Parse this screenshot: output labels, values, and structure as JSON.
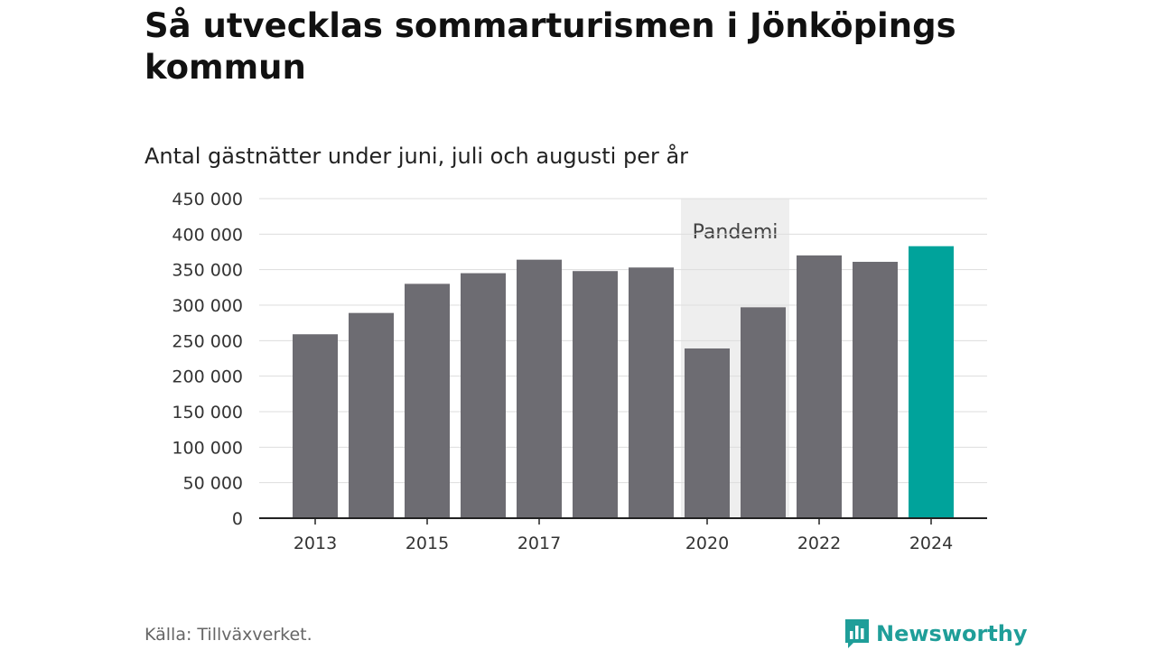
{
  "chart_data": {
    "type": "bar",
    "title": "Så utvecklas sommarturismen i Jönköpings kommun",
    "subtitle": "Antal gästnätter under juni, juli och augusti per år",
    "categories": [
      "2013",
      "2014",
      "2015",
      "2016",
      "2017",
      "2018",
      "2019",
      "2020",
      "2021",
      "2022",
      "2023",
      "2024"
    ],
    "x_tick_labels": [
      "2013",
      "",
      "2015",
      "",
      "2017",
      "",
      "",
      "2020",
      "",
      "2022",
      "",
      "2024"
    ],
    "values": [
      259000,
      289000,
      330000,
      345000,
      364000,
      348000,
      353000,
      239000,
      297000,
      370000,
      361000,
      383000
    ],
    "ylim": [
      0,
      450000
    ],
    "y_ticks": [
      0,
      50000,
      100000,
      150000,
      200000,
      250000,
      300000,
      350000,
      400000,
      450000
    ],
    "y_tick_labels": [
      "0",
      "50 000",
      "100 000",
      "150 000",
      "200 000",
      "250 000",
      "300 000",
      "350 000",
      "400 000",
      "450 000"
    ],
    "grid": true,
    "bar_color": "#6d6c72",
    "highlight_color": "#00a39b",
    "highlight_category": "2024",
    "shaded_region": {
      "label": "Pandemi",
      "from": "2020",
      "to": "2021",
      "color": "#eeeeee"
    }
  },
  "source": "Källa: Tillväxverket.",
  "brand": "Newsworthy",
  "brand_color": "#1f9e99"
}
